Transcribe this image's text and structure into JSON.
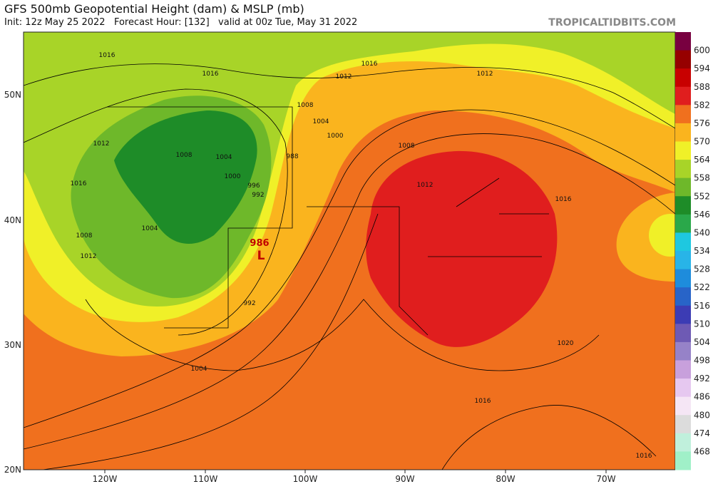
{
  "header": {
    "title": "GFS 500mb Geopotential Height (dam) & MSLP (mb)",
    "subtitle": "Init: 12z May 25 2022   Forecast Hour: [132]   valid at 00z Tue, May 31 2022",
    "source": "TROPICALTIDBITS.COM"
  },
  "colorbar": {
    "labels": [
      "600",
      "594",
      "588",
      "582",
      "576",
      "570",
      "564",
      "558",
      "552",
      "546",
      "540",
      "534",
      "528",
      "522",
      "516",
      "510",
      "504",
      "498",
      "492",
      "486",
      "480",
      "474",
      "468"
    ]
  },
  "latitudes": [
    "50N",
    "40N",
    "30N",
    "20N"
  ],
  "longitudes": [
    "120W",
    "110W",
    "100W",
    "90W",
    "80W",
    "70W"
  ],
  "isobar_labels": [
    "1016",
    "1016",
    "1012",
    "1016",
    "1012",
    "1008",
    "1004",
    "1000",
    "988",
    "1008",
    "1004",
    "1000",
    "996",
    "992",
    "1012",
    "1016",
    "1008",
    "1012",
    "1004",
    "992",
    "1008",
    "1012",
    "1016",
    "1020",
    "1004",
    "1016",
    "1016"
  ],
  "low": {
    "pressure": "986",
    "symbol": "L"
  }
}
